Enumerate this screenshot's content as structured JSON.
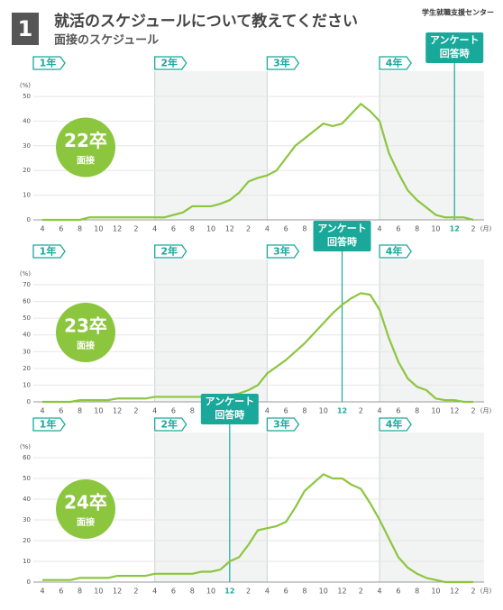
{
  "header": {
    "number": "1",
    "title": "就活のスケジュールについて教えてください",
    "subtitle": "面接のスケジュール",
    "brand": "学生就職支援センター"
  },
  "chart_data": [
    {
      "type": "line",
      "badge": "22卒",
      "badge_sub": "面接",
      "color": "#8cc63f",
      "year_labels": [
        "1年",
        "2年",
        "3年",
        "4年"
      ],
      "y_unit": "(%)",
      "x_unit": "(月)",
      "annotation": {
        "lines": [
          "アンケート",
          "回答時"
        ],
        "category": 44
      },
      "categories": [
        "4",
        null,
        "6",
        null,
        "8",
        null,
        "10",
        null,
        "12",
        null,
        "2",
        null,
        "4",
        null,
        "6",
        null,
        "8",
        null,
        "10",
        null,
        "12",
        null,
        "2",
        null,
        "4",
        null,
        "6",
        null,
        "8",
        null,
        "10",
        null,
        "12",
        null,
        "2",
        null,
        "4",
        null,
        "6",
        null,
        "8",
        null,
        "10",
        null,
        "12",
        null,
        "2"
      ],
      "values": [
        0,
        0,
        0,
        0,
        0,
        1,
        1,
        1,
        1,
        1,
        1,
        1,
        1,
        1,
        2,
        3,
        5.5,
        5.5,
        5.5,
        6.5,
        8,
        11,
        15.5,
        17,
        18,
        20,
        25,
        30,
        33,
        36,
        39,
        38,
        39,
        43,
        47,
        44,
        40,
        27,
        19,
        12,
        8,
        5,
        2,
        1,
        1,
        1,
        0
      ],
      "ylim": [
        0,
        50
      ],
      "yticks": [
        0,
        10,
        20,
        30,
        40,
        50
      ]
    },
    {
      "type": "line",
      "badge": "23卒",
      "badge_sub": "面接",
      "color": "#8cc63f",
      "year_labels": [
        "1年",
        "2年",
        "3年",
        "4年"
      ],
      "y_unit": "(%)",
      "x_unit": "(月)",
      "annotation": {
        "lines": [
          "アンケート",
          "回答時"
        ],
        "category": 32
      },
      "categories": [
        "4",
        null,
        "6",
        null,
        "8",
        null,
        "10",
        null,
        "12",
        null,
        "2",
        null,
        "4",
        null,
        "6",
        null,
        "8",
        null,
        "10",
        null,
        "12",
        null,
        "2",
        null,
        "4",
        null,
        "6",
        null,
        "8",
        null,
        "10",
        null,
        "12",
        null,
        "2",
        null,
        "4",
        null,
        "6",
        null,
        "8",
        null,
        "10",
        null,
        "12",
        null,
        "2"
      ],
      "values": [
        0,
        0,
        0,
        0,
        1,
        1,
        1,
        1,
        2,
        2,
        2,
        2,
        3,
        3,
        3,
        3,
        3,
        3,
        4,
        4,
        4,
        5,
        7,
        10,
        17,
        21,
        25,
        30,
        35,
        41,
        47,
        53,
        58,
        62,
        65,
        64,
        55,
        38,
        24,
        14,
        9,
        7,
        2,
        1,
        1,
        0,
        0
      ],
      "ylim": [
        0,
        70
      ],
      "yticks": [
        0,
        10,
        20,
        30,
        40,
        50,
        60,
        70
      ]
    },
    {
      "type": "line",
      "badge": "24卒",
      "badge_sub": "面接",
      "color": "#8cc63f",
      "year_labels": [
        "1年",
        "2年",
        "3年",
        "4年"
      ],
      "y_unit": "(%)",
      "x_unit": "(月)",
      "annotation": {
        "lines": [
          "アンケート",
          "回答時"
        ],
        "category": 20
      },
      "categories": [
        "4",
        null,
        "6",
        null,
        "8",
        null,
        "10",
        null,
        "12",
        null,
        "2",
        null,
        "4",
        null,
        "6",
        null,
        "8",
        null,
        "10",
        null,
        "12",
        null,
        "2",
        null,
        "4",
        null,
        "6",
        null,
        "8",
        null,
        "10",
        null,
        "12",
        null,
        "2",
        null,
        "4",
        null,
        "6",
        null,
        "8",
        null,
        "10",
        null,
        "12",
        null,
        "2"
      ],
      "values": [
        1,
        1,
        1,
        1,
        2,
        2,
        2,
        2,
        3,
        3,
        3,
        3,
        4,
        4,
        4,
        4,
        4,
        5,
        5,
        6,
        10,
        12,
        18,
        25,
        26,
        27,
        29,
        36,
        44,
        48,
        52,
        50,
        50,
        47,
        45,
        38,
        30,
        21,
        12,
        7,
        4,
        2,
        1,
        0,
        0,
        0,
        0
      ],
      "ylim": [
        0,
        60
      ],
      "yticks": [
        0,
        10,
        20,
        30,
        40,
        50,
        60
      ]
    }
  ]
}
